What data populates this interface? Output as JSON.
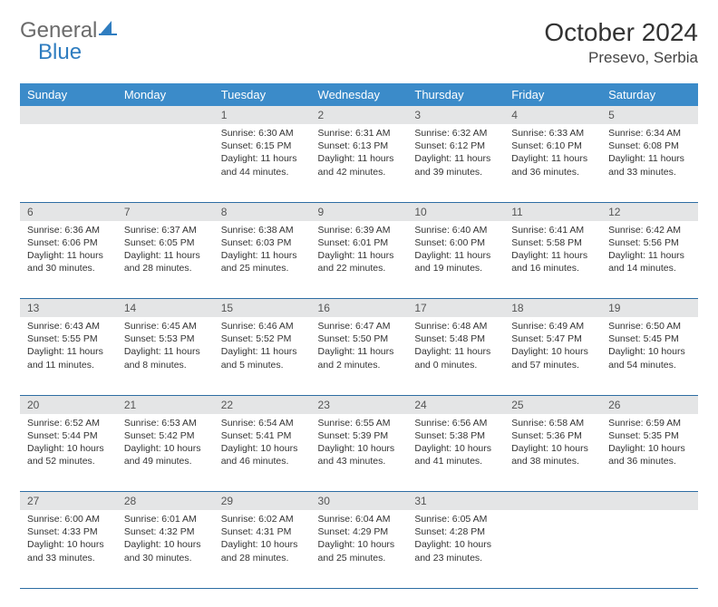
{
  "brand": {
    "left": "General",
    "right": "Blue"
  },
  "title": "October 2024",
  "location": "Presevo, Serbia",
  "colors": {
    "header_bg": "#3b8bc9",
    "header_text": "#ffffff",
    "daynum_bg": "#e4e5e6",
    "row_divider": "#2d6da3",
    "brand_blue": "#2f7dc0",
    "brand_gray": "#6b6b6b"
  },
  "weekdays": [
    "Sunday",
    "Monday",
    "Tuesday",
    "Wednesday",
    "Thursday",
    "Friday",
    "Saturday"
  ],
  "weeks": [
    {
      "nums": [
        "",
        "",
        "1",
        "2",
        "3",
        "4",
        "5"
      ],
      "cells": [
        {
          "sunrise": "",
          "sunset": "",
          "daylight": ""
        },
        {
          "sunrise": "",
          "sunset": "",
          "daylight": ""
        },
        {
          "sunrise": "Sunrise: 6:30 AM",
          "sunset": "Sunset: 6:15 PM",
          "daylight": "Daylight: 11 hours and 44 minutes."
        },
        {
          "sunrise": "Sunrise: 6:31 AM",
          "sunset": "Sunset: 6:13 PM",
          "daylight": "Daylight: 11 hours and 42 minutes."
        },
        {
          "sunrise": "Sunrise: 6:32 AM",
          "sunset": "Sunset: 6:12 PM",
          "daylight": "Daylight: 11 hours and 39 minutes."
        },
        {
          "sunrise": "Sunrise: 6:33 AM",
          "sunset": "Sunset: 6:10 PM",
          "daylight": "Daylight: 11 hours and 36 minutes."
        },
        {
          "sunrise": "Sunrise: 6:34 AM",
          "sunset": "Sunset: 6:08 PM",
          "daylight": "Daylight: 11 hours and 33 minutes."
        }
      ]
    },
    {
      "nums": [
        "6",
        "7",
        "8",
        "9",
        "10",
        "11",
        "12"
      ],
      "cells": [
        {
          "sunrise": "Sunrise: 6:36 AM",
          "sunset": "Sunset: 6:06 PM",
          "daylight": "Daylight: 11 hours and 30 minutes."
        },
        {
          "sunrise": "Sunrise: 6:37 AM",
          "sunset": "Sunset: 6:05 PM",
          "daylight": "Daylight: 11 hours and 28 minutes."
        },
        {
          "sunrise": "Sunrise: 6:38 AM",
          "sunset": "Sunset: 6:03 PM",
          "daylight": "Daylight: 11 hours and 25 minutes."
        },
        {
          "sunrise": "Sunrise: 6:39 AM",
          "sunset": "Sunset: 6:01 PM",
          "daylight": "Daylight: 11 hours and 22 minutes."
        },
        {
          "sunrise": "Sunrise: 6:40 AM",
          "sunset": "Sunset: 6:00 PM",
          "daylight": "Daylight: 11 hours and 19 minutes."
        },
        {
          "sunrise": "Sunrise: 6:41 AM",
          "sunset": "Sunset: 5:58 PM",
          "daylight": "Daylight: 11 hours and 16 minutes."
        },
        {
          "sunrise": "Sunrise: 6:42 AM",
          "sunset": "Sunset: 5:56 PM",
          "daylight": "Daylight: 11 hours and 14 minutes."
        }
      ]
    },
    {
      "nums": [
        "13",
        "14",
        "15",
        "16",
        "17",
        "18",
        "19"
      ],
      "cells": [
        {
          "sunrise": "Sunrise: 6:43 AM",
          "sunset": "Sunset: 5:55 PM",
          "daylight": "Daylight: 11 hours and 11 minutes."
        },
        {
          "sunrise": "Sunrise: 6:45 AM",
          "sunset": "Sunset: 5:53 PM",
          "daylight": "Daylight: 11 hours and 8 minutes."
        },
        {
          "sunrise": "Sunrise: 6:46 AM",
          "sunset": "Sunset: 5:52 PM",
          "daylight": "Daylight: 11 hours and 5 minutes."
        },
        {
          "sunrise": "Sunrise: 6:47 AM",
          "sunset": "Sunset: 5:50 PM",
          "daylight": "Daylight: 11 hours and 2 minutes."
        },
        {
          "sunrise": "Sunrise: 6:48 AM",
          "sunset": "Sunset: 5:48 PM",
          "daylight": "Daylight: 11 hours and 0 minutes."
        },
        {
          "sunrise": "Sunrise: 6:49 AM",
          "sunset": "Sunset: 5:47 PM",
          "daylight": "Daylight: 10 hours and 57 minutes."
        },
        {
          "sunrise": "Sunrise: 6:50 AM",
          "sunset": "Sunset: 5:45 PM",
          "daylight": "Daylight: 10 hours and 54 minutes."
        }
      ]
    },
    {
      "nums": [
        "20",
        "21",
        "22",
        "23",
        "24",
        "25",
        "26"
      ],
      "cells": [
        {
          "sunrise": "Sunrise: 6:52 AM",
          "sunset": "Sunset: 5:44 PM",
          "daylight": "Daylight: 10 hours and 52 minutes."
        },
        {
          "sunrise": "Sunrise: 6:53 AM",
          "sunset": "Sunset: 5:42 PM",
          "daylight": "Daylight: 10 hours and 49 minutes."
        },
        {
          "sunrise": "Sunrise: 6:54 AM",
          "sunset": "Sunset: 5:41 PM",
          "daylight": "Daylight: 10 hours and 46 minutes."
        },
        {
          "sunrise": "Sunrise: 6:55 AM",
          "sunset": "Sunset: 5:39 PM",
          "daylight": "Daylight: 10 hours and 43 minutes."
        },
        {
          "sunrise": "Sunrise: 6:56 AM",
          "sunset": "Sunset: 5:38 PM",
          "daylight": "Daylight: 10 hours and 41 minutes."
        },
        {
          "sunrise": "Sunrise: 6:58 AM",
          "sunset": "Sunset: 5:36 PM",
          "daylight": "Daylight: 10 hours and 38 minutes."
        },
        {
          "sunrise": "Sunrise: 6:59 AM",
          "sunset": "Sunset: 5:35 PM",
          "daylight": "Daylight: 10 hours and 36 minutes."
        }
      ]
    },
    {
      "nums": [
        "27",
        "28",
        "29",
        "30",
        "31",
        "",
        ""
      ],
      "cells": [
        {
          "sunrise": "Sunrise: 6:00 AM",
          "sunset": "Sunset: 4:33 PM",
          "daylight": "Daylight: 10 hours and 33 minutes."
        },
        {
          "sunrise": "Sunrise: 6:01 AM",
          "sunset": "Sunset: 4:32 PM",
          "daylight": "Daylight: 10 hours and 30 minutes."
        },
        {
          "sunrise": "Sunrise: 6:02 AM",
          "sunset": "Sunset: 4:31 PM",
          "daylight": "Daylight: 10 hours and 28 minutes."
        },
        {
          "sunrise": "Sunrise: 6:04 AM",
          "sunset": "Sunset: 4:29 PM",
          "daylight": "Daylight: 10 hours and 25 minutes."
        },
        {
          "sunrise": "Sunrise: 6:05 AM",
          "sunset": "Sunset: 4:28 PM",
          "daylight": "Daylight: 10 hours and 23 minutes."
        },
        {
          "sunrise": "",
          "sunset": "",
          "daylight": ""
        },
        {
          "sunrise": "",
          "sunset": "",
          "daylight": ""
        }
      ]
    }
  ]
}
